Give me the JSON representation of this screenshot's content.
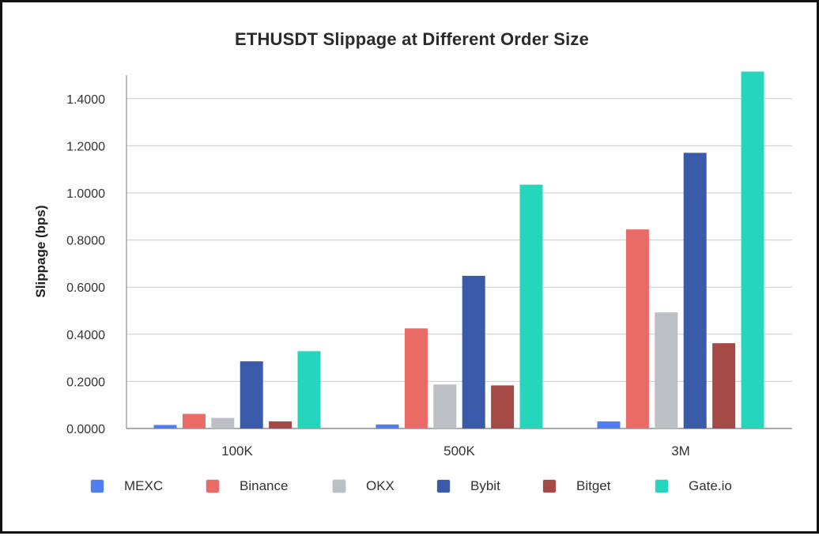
{
  "chart_data": {
    "type": "bar",
    "title": "ETHUSDT Slippage at Different Order Size",
    "xlabel": "",
    "ylabel": "Slippage (bps)",
    "ylim": [
      0,
      1.5
    ],
    "y_ticks": [
      "0.0000",
      "0.2000",
      "0.4000",
      "0.6000",
      "0.8000",
      "1.0000",
      "1.2000",
      "1.4000"
    ],
    "y_tick_values": [
      0,
      0.2,
      0.4,
      0.6,
      0.8,
      1.0,
      1.2,
      1.4
    ],
    "grid": true,
    "legend_position": "bottom",
    "categories": [
      "100K",
      "500K",
      "3M"
    ],
    "series": [
      {
        "name": "MEXC",
        "color": "#4f7ef0",
        "values": [
          0.015,
          0.017,
          0.03
        ]
      },
      {
        "name": "Binance",
        "color": "#ea6a65",
        "values": [
          0.062,
          0.425,
          0.845
        ]
      },
      {
        "name": "OKX",
        "color": "#bcc0c5",
        "values": [
          0.045,
          0.187,
          0.493
        ]
      },
      {
        "name": "Bybit",
        "color": "#3a5baa",
        "values": [
          0.285,
          0.648,
          1.17
        ]
      },
      {
        "name": "Bitget",
        "color": "#a64a47",
        "values": [
          0.03,
          0.183,
          0.362
        ]
      },
      {
        "name": "Gate.io",
        "color": "#25d6bc",
        "values": [
          0.328,
          1.035,
          1.515
        ]
      }
    ]
  }
}
